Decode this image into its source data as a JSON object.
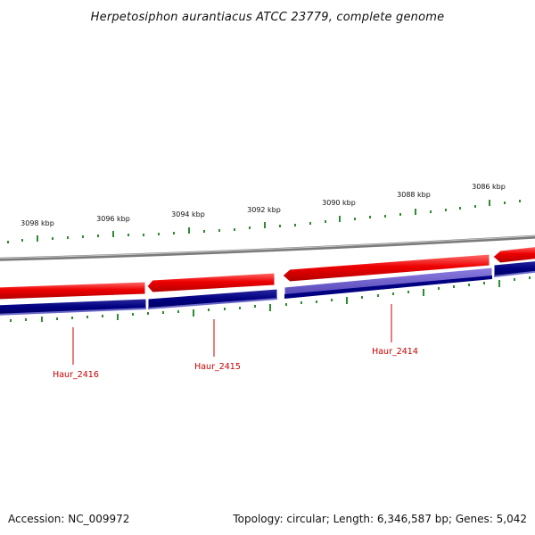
{
  "title": "Herpetosiphon aurantiacus ATCC 23779, complete genome",
  "footer": {
    "accession": "Accession: NC_009972",
    "summary": "Topology: circular; Length: 6,346,587 bp; Genes: 5,042"
  },
  "scale_labels": [
    "3098 kbp",
    "3096 kbp",
    "3094 kbp",
    "3092 kbp",
    "3090 kbp",
    "3088 kbp",
    "3086 kbp"
  ],
  "gene_labels": [
    "Haur_2416",
    "Haur_2415",
    "Haur_2414"
  ],
  "colors": {
    "forward_cds": "#ee0000",
    "reverse_cds": "#000080",
    "highlight_cds": "#6a5acd",
    "backbone": "#808080",
    "tick": "#2e8b2e",
    "gene_label": "#c80000"
  }
}
